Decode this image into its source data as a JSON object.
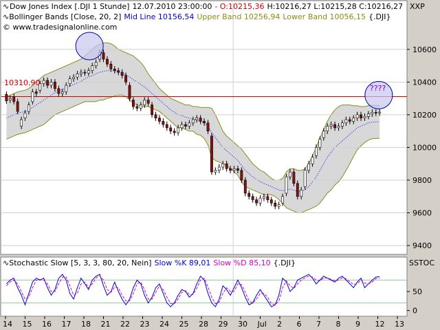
{
  "header": {
    "line1": {
      "name": "Dow Jones Index [.DJI  1 Stunde]",
      "datetime": "12.07.2010 23:00:00",
      "open_prefix": "- O:10215,36",
      "rest": "H:10216,27 L:10215,28 C:10216,27"
    },
    "line2": {
      "name": "Bollinger Bands [Close, 20, 2]",
      "mid": "Mid Line 10156,54",
      "upper": "Upper Band 10256,94",
      "lower": "Lower Band 10056,15",
      "symbol": "{.DJI}"
    },
    "line3": "www.tradesignalonline.com",
    "right_label_main": "XXP"
  },
  "stoch_header": {
    "name": "Stochastic Slow [5, 3, 3, 80, 20, Nein]",
    "k": "Slow %K 89,01",
    "d": "Slow %D 85,10",
    "symbol": "{.DJI}",
    "right_label": "SSTOC"
  },
  "annotations": {
    "hline_label": "10310,90",
    "question": "????"
  },
  "colors": {
    "up_candle": "#ffffff",
    "down_candle": "#8b1010",
    "band_fill": "#d8d8d8",
    "band_line": "#8b8b1a",
    "mid_line": "#0000ff",
    "hline": "#cc0000",
    "k_line": "#0000cc",
    "d_line": "#cc00cc",
    "circle_fill": "#c8c8f0",
    "circle_stroke": "#0000aa"
  },
  "chart_data": [
    {
      "type": "candlestick",
      "title": "Dow Jones Index [.DJI  1 Stunde]",
      "ylim": [
        9350,
        10700
      ],
      "yticks": [
        9400,
        9600,
        9800,
        10000,
        10200,
        10400,
        10600
      ],
      "xticks": [
        "14",
        "15",
        "16",
        "17",
        "18",
        "21",
        "22",
        "23",
        "24",
        "25",
        "28",
        "29",
        "30",
        "Jul",
        "2",
        "6",
        "7",
        "8",
        "9",
        "12",
        "13"
      ],
      "x_range": [
        0,
        21
      ],
      "close": [
        10285,
        10300,
        10280,
        10220,
        10170,
        10210,
        10260,
        10340,
        10330,
        10390,
        10410,
        10380,
        10400,
        10360,
        10330,
        10340,
        10380,
        10420,
        10430,
        10450,
        10460,
        10455,
        10470,
        10500,
        10520,
        10580,
        10540,
        10510,
        10480,
        10470,
        10460,
        10440,
        10400,
        10300,
        10250,
        10240,
        10260,
        10290,
        10270,
        10200,
        10180,
        10160,
        10140,
        10120,
        10100,
        10090,
        10120,
        10140,
        10130,
        10150,
        10170,
        10180,
        10160,
        10150,
        10100,
        9850,
        9860,
        9880,
        9900,
        9870,
        9860,
        9870,
        9860,
        9800,
        9720,
        9700,
        9680,
        9660,
        9690,
        9700,
        9680,
        9660,
        9640,
        9650,
        9700,
        9820,
        9850,
        9780,
        9700,
        9740,
        9860,
        9900,
        9940,
        10000,
        10050,
        10100,
        10130,
        10140,
        10120,
        10130,
        10150,
        10170,
        10160,
        10180,
        10200,
        10180,
        10190,
        10205,
        10215,
        10210,
        10216
      ],
      "open_bias": [
        40,
        -10,
        30,
        60,
        -40,
        -30,
        -40,
        -60,
        10,
        -40,
        -20,
        30,
        -20,
        40,
        30,
        -10,
        -40,
        -30,
        -10,
        -20,
        -10,
        5,
        -15,
        -30,
        -20,
        -40,
        40,
        30,
        30,
        10,
        10,
        20,
        40,
        80,
        40,
        10,
        -20,
        -30,
        20,
        60,
        20,
        20,
        20,
        20,
        20,
        10,
        -30,
        -20,
        10,
        -20,
        -20,
        -10,
        20,
        10,
        50,
        220,
        -10,
        -20,
        -20,
        30,
        10,
        -10,
        10,
        60,
        80,
        20,
        20,
        20,
        -30,
        -10,
        20,
        20,
        20,
        -10,
        -40,
        -100,
        -30,
        70,
        80,
        -40,
        -100,
        -40,
        -40,
        -50,
        -50,
        -40,
        -30,
        -10,
        20,
        -10,
        -20,
        -20,
        10,
        -20,
        -20,
        20,
        -10,
        -15,
        -10,
        5,
        -5
      ],
      "wick": 18,
      "bollinger": {
        "mid": [
          10180,
          10190,
          10200,
          10210,
          10215,
          10220,
          10230,
          10245,
          10260,
          10275,
          10290,
          10305,
          10320,
          10335,
          10345,
          10355,
          10365,
          10375,
          10385,
          10395,
          10405,
          10420,
          10430,
          10440,
          10450,
          10460,
          10465,
          10470,
          10470,
          10468,
          10460,
          10455,
          10445,
          10430,
          10415,
          10400,
          10385,
          10370,
          10350,
          10330,
          10310,
          10290,
          10270,
          10250,
          10230,
          10215,
          10200,
          10195,
          10185,
          10180,
          10175,
          10165,
          10160,
          10150,
          10130,
          10090,
          10060,
          10030,
          10000,
          9980,
          9960,
          9940,
          9920,
          9890,
          9860,
          9840,
          9820,
          9805,
          9790,
          9780,
          9770,
          9760,
          9750,
          9740,
          9735,
          9740,
          9745,
          9740,
          9730,
          9730,
          9740,
          9760,
          9790,
          9820,
          9860,
          9900,
          9940,
          9970,
          10000,
          10020,
          10040,
          10060,
          10080,
          10100,
          10120,
          10130,
          10140,
          10150,
          10155,
          10156,
          10157
        ],
        "upper": [
          10310,
          10320,
          10330,
          10340,
          10345,
          10350,
          10360,
          10380,
          10400,
          10420,
          10440,
          10450,
          10460,
          10470,
          10480,
          10490,
          10500,
          10510,
          10520,
          10530,
          10540,
          10560,
          10580,
          10600,
          10620,
          10630,
          10640,
          10640,
          10635,
          10620,
          10600,
          10590,
          10580,
          10570,
          10560,
          10540,
          10520,
          10490,
          10450,
          10420,
          10390,
          10360,
          10340,
          10320,
          10300,
          10290,
          10280,
          10270,
          10260,
          10260,
          10250,
          10250,
          10245,
          10245,
          10245,
          10240,
          10200,
          10150,
          10100,
          10070,
          10050,
          10030,
          10010,
          9990,
          9960,
          9930,
          9900,
          9880,
          9860,
          9850,
          9830,
          9810,
          9800,
          9800,
          9810,
          9850,
          9870,
          9870,
          9860,
          9860,
          9870,
          9900,
          9950,
          10000,
          10060,
          10110,
          10160,
          10200,
          10230,
          10250,
          10260,
          10260,
          10260,
          10255,
          10255,
          10250,
          10250,
          10255,
          10257,
          10257,
          10257
        ],
        "lower": [
          10050,
          10060,
          10070,
          10080,
          10085,
          10090,
          10100,
          10110,
          10120,
          10130,
          10140,
          10160,
          10180,
          10200,
          10210,
          10220,
          10230,
          10240,
          10250,
          10260,
          10270,
          10280,
          10280,
          10280,
          10280,
          10290,
          10290,
          10300,
          10305,
          10316,
          10320,
          10320,
          10310,
          10290,
          10270,
          10260,
          10250,
          10250,
          10250,
          10240,
          10230,
          10220,
          10200,
          10180,
          10160,
          10140,
          10120,
          10120,
          10110,
          10100,
          10100,
          10080,
          10075,
          10055,
          10015,
          9940,
          9920,
          9910,
          9900,
          9890,
          9870,
          9850,
          9830,
          9790,
          9760,
          9750,
          9740,
          9730,
          9720,
          9710,
          9710,
          9710,
          9700,
          9680,
          9660,
          9630,
          9620,
          9610,
          9600,
          9600,
          9610,
          9620,
          9630,
          9640,
          9660,
          9690,
          9720,
          9740,
          9770,
          9790,
          9820,
          9860,
          9900,
          9945,
          9985,
          10010,
          10030,
          10045,
          10053,
          10055,
          10056
        ]
      },
      "hline": 10310.9,
      "circles": [
        {
          "x": 4.5,
          "y": 10620
        },
        {
          "x": 20.0,
          "y": 10320
        }
      ]
    },
    {
      "type": "line",
      "title": "Stochastic Slow [5, 3, 3, 80, 20, Nein]",
      "ylim": [
        -15,
        115
      ],
      "yticks": [
        0,
        50
      ],
      "levels": [
        80,
        20
      ],
      "series": [
        {
          "name": "Slow %K",
          "values": [
            70,
            80,
            85,
            60,
            40,
            15,
            45,
            75,
            85,
            80,
            85,
            60,
            40,
            55,
            85,
            95,
            80,
            45,
            30,
            60,
            85,
            70,
            55,
            80,
            90,
            95,
            65,
            40,
            50,
            75,
            50,
            30,
            15,
            30,
            60,
            80,
            70,
            40,
            20,
            35,
            60,
            70,
            45,
            20,
            10,
            20,
            40,
            55,
            50,
            35,
            45,
            70,
            90,
            80,
            45,
            20,
            10,
            30,
            65,
            55,
            40,
            60,
            80,
            60,
            35,
            15,
            20,
            40,
            55,
            40,
            25,
            10,
            15,
            40,
            85,
            75,
            50,
            60,
            80,
            85,
            90,
            95,
            85,
            70,
            80,
            90,
            85,
            80,
            75,
            85,
            90,
            80,
            70,
            60,
            75,
            85,
            60,
            70,
            80,
            88,
            89
          ]
        },
        {
          "name": "Slow %D",
          "values": [
            65,
            75,
            80,
            70,
            50,
            30,
            35,
            60,
            80,
            82,
            80,
            70,
            50,
            50,
            70,
            88,
            88,
            65,
            40,
            45,
            70,
            75,
            60,
            70,
            85,
            92,
            80,
            55,
            48,
            62,
            60,
            40,
            25,
            25,
            45,
            70,
            75,
            55,
            30,
            30,
            48,
            65,
            55,
            35,
            18,
            18,
            30,
            48,
            52,
            42,
            42,
            58,
            80,
            85,
            62,
            35,
            18,
            22,
            45,
            60,
            50,
            50,
            70,
            68,
            48,
            25,
            20,
            30,
            45,
            45,
            35,
            18,
            15,
            25,
            60,
            78,
            65,
            58,
            70,
            80,
            86,
            90,
            88,
            80,
            78,
            85,
            86,
            82,
            78,
            80,
            86,
            84,
            76,
            68,
            70,
            80,
            72,
            70,
            75,
            84,
            85
          ]
        }
      ]
    }
  ]
}
